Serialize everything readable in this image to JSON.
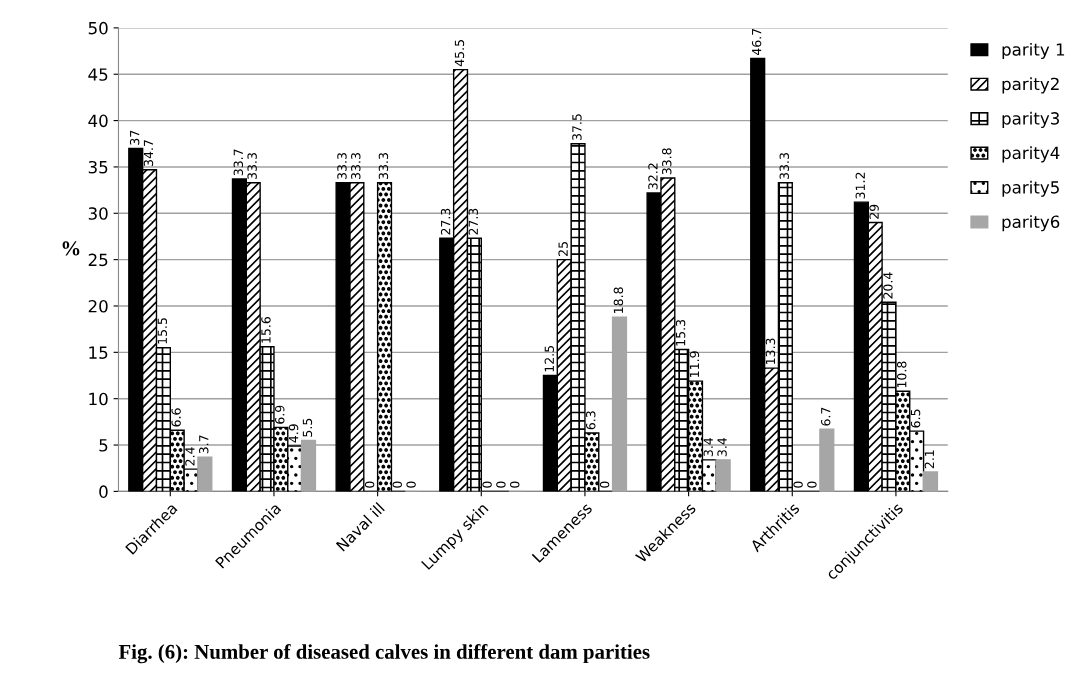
{
  "chart_data": {
    "type": "bar",
    "title": "Fig. (6): Number of diseased calves in different dam parities",
    "ylabel": "%",
    "categories": [
      "Diarrhea",
      "Pneumonia",
      "Naval ill",
      "Lumpy skin",
      "Lameness",
      "Weakness",
      "Arthritis",
      "conjunctivitis"
    ],
    "series": [
      {
        "name": "parity 1",
        "color": "#000000",
        "values": [
          37,
          33.7,
          33.3,
          27.3,
          12.5,
          32.2,
          46.7,
          31.2
        ]
      },
      {
        "name": "parity2",
        "color": "#000000",
        "values": [
          34.7,
          33.3,
          33.3,
          45.5,
          25,
          33.8,
          13.3,
          29
        ]
      },
      {
        "name": "parity3",
        "color": "#000000",
        "values": [
          15.5,
          15.6,
          0,
          27.3,
          37.5,
          15.3,
          33.3,
          20.4
        ]
      },
      {
        "name": "parity4",
        "color": "#000000",
        "values": [
          6.6,
          6.9,
          33.3,
          0,
          6.3,
          11.9,
          0,
          10.8
        ]
      },
      {
        "name": "parity5",
        "color": "#000000",
        "values": [
          2.4,
          4.9,
          0,
          0,
          0,
          3.4,
          0,
          6.5
        ]
      },
      {
        "name": "parity6",
        "color": "#a6a6a6",
        "values": [
          3.7,
          5.5,
          0,
          0,
          18.8,
          3.4,
          6.7,
          2.1
        ]
      }
    ],
    "ylim": [
      0,
      50
    ],
    "yticks": [
      0,
      5,
      10,
      15,
      20,
      25,
      30,
      35,
      40,
      45,
      50
    ],
    "grid": "y",
    "legend": "right",
    "data_labels": true
  }
}
